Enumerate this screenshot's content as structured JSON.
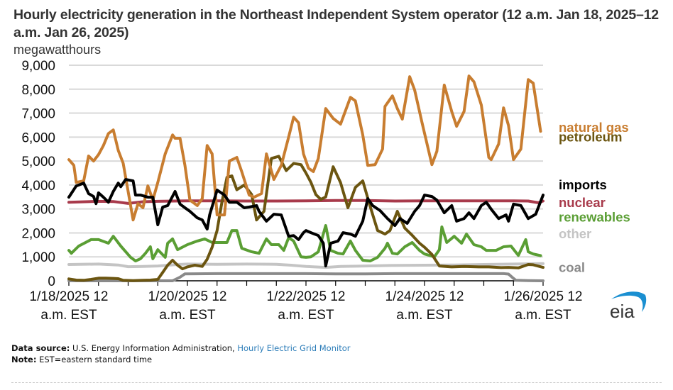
{
  "title": "Hourly electricity generation in the Northeast Independent System operator (12 a.m. Jan 18, 2025–12 a.m. Jan 26, 2025)",
  "footer": {
    "source_label": "Data source:",
    "source_text": "U.S. Energy Information Administration,",
    "source_link": "Hourly Electric Grid Monitor",
    "note_label": "Note:",
    "note_text": "EST=eastern standard time"
  },
  "logo": {
    "text": "eia",
    "name": "eia-logo"
  },
  "chart_data": {
    "type": "line",
    "title": "Hourly electricity generation in the Northeast Independent System operator (12 a.m. Jan 18, 2025–12 a.m. Jan 26, 2025)",
    "ylabel": "megawatthours",
    "xlabel": "",
    "x_unit": "hours since 1/18/2025 12 a.m. EST",
    "xlim": [
      0,
      192
    ],
    "ylim": [
      0,
      9000
    ],
    "yticks": [
      0,
      1000,
      2000,
      3000,
      4000,
      5000,
      6000,
      7000,
      8000,
      9000
    ],
    "ytick_labels": [
      "0",
      "1,000",
      "2,000",
      "3,000",
      "4,000",
      "5,000",
      "6,000",
      "7,000",
      "8,000",
      "9,000"
    ],
    "xticks_minor_hours": [
      0,
      12,
      24,
      36,
      48,
      60,
      72,
      84,
      96,
      108,
      120,
      132,
      144,
      156,
      168,
      180,
      192
    ],
    "xtick_labels": [
      {
        "hour": 0,
        "line1": "1/18/2025 12",
        "line2": "a.m. EST"
      },
      {
        "hour": 48,
        "line1": "1/20/2025 12",
        "line2": "a.m. EST"
      },
      {
        "hour": 96,
        "line1": "1/22/2025 12",
        "line2": "a.m. EST"
      },
      {
        "hour": 144,
        "line1": "1/24/2025 12",
        "line2": "a.m. EST"
      },
      {
        "hour": 192,
        "line1": "1/26/2025 12",
        "line2": "a.m. EST"
      }
    ],
    "grid": true,
    "legend_placement": "right, labels beside line ends",
    "series": [
      {
        "name": "natural gas",
        "color": "#c87d30",
        "legend_value_at": 6400,
        "x": [
          0,
          2,
          3,
          6,
          8,
          10,
          12,
          14,
          16,
          18,
          20,
          22,
          24,
          26,
          28,
          30,
          32,
          34,
          36,
          39,
          42,
          43,
          45,
          47,
          49,
          52,
          54,
          56,
          58,
          60,
          63,
          65,
          68,
          70,
          73,
          75,
          78,
          80,
          83,
          86,
          89,
          91,
          93,
          95,
          97,
          99,
          101,
          104,
          107,
          110,
          114,
          116,
          119,
          121,
          124,
          127,
          128,
          131,
          133,
          135,
          138,
          140,
          143,
          147,
          149,
          152,
          155,
          157,
          160,
          162,
          164,
          167,
          170,
          171,
          174,
          176,
          178,
          180,
          183,
          186,
          188,
          191
        ],
        "y": [
          5060,
          4820,
          4110,
          4170,
          5210,
          5000,
          5270,
          5650,
          6150,
          6300,
          5440,
          4910,
          3730,
          2540,
          3220,
          3050,
          3960,
          3370,
          4110,
          5300,
          6090,
          5950,
          5950,
          4820,
          3370,
          3140,
          3430,
          5650,
          5300,
          2750,
          2750,
          5000,
          5150,
          4560,
          3580,
          3490,
          3640,
          5300,
          4230,
          4820,
          6000,
          6830,
          6600,
          5300,
          4700,
          4560,
          5110,
          7190,
          6780,
          6540,
          7660,
          7510,
          6090,
          4820,
          4850,
          5500,
          7280,
          7720,
          7190,
          6750,
          8520,
          7960,
          6600,
          4850,
          5410,
          8170,
          7070,
          6450,
          7070,
          8550,
          8310,
          7340,
          5150,
          5060,
          5710,
          7220,
          6480,
          5060,
          5500,
          8400,
          8250,
          6240
        ]
      },
      {
        "name": "petroleum",
        "color": "#6b5510",
        "legend_value_at": 6000,
        "x": [
          0,
          3,
          6,
          9,
          12,
          15,
          18,
          20,
          22,
          26,
          30,
          33,
          36,
          38,
          40,
          42,
          44,
          46,
          48,
          51,
          54,
          56,
          58,
          60,
          62,
          64,
          66,
          68,
          71,
          74,
          76,
          79,
          82,
          85,
          88,
          91,
          94,
          96,
          98,
          100,
          102,
          104,
          107,
          110,
          113,
          116,
          119,
          122,
          125,
          128,
          130,
          133,
          136,
          139,
          142,
          144,
          147,
          150,
          155,
          160,
          166,
          170,
          175,
          178,
          182,
          186,
          188,
          192
        ],
        "y": [
          80,
          30,
          20,
          60,
          110,
          110,
          100,
          90,
          20,
          10,
          20,
          30,
          60,
          350,
          650,
          860,
          650,
          500,
          580,
          650,
          600,
          900,
          1400,
          2100,
          3300,
          4320,
          4380,
          3800,
          4000,
          3600,
          2540,
          2900,
          5110,
          5200,
          4600,
          4900,
          4850,
          4500,
          4110,
          3600,
          3400,
          3500,
          4760,
          4100,
          3050,
          3900,
          4170,
          3100,
          2100,
          1950,
          2100,
          2900,
          2200,
          1900,
          1570,
          1400,
          1100,
          620,
          580,
          600,
          580,
          580,
          550,
          560,
          540,
          680,
          670,
          560
        ]
      },
      {
        "name": "imports",
        "color": "#000000",
        "legend_value_at": 4000,
        "x": [
          0,
          3,
          6,
          8,
          10,
          11,
          12,
          14,
          16,
          18,
          20,
          21,
          23,
          26,
          27,
          29,
          32,
          34,
          36,
          38,
          40,
          43,
          45,
          47,
          49,
          52,
          54,
          56,
          57,
          60,
          63,
          65,
          68,
          71,
          73,
          76,
          77,
          80,
          83,
          86,
          89,
          91,
          93,
          95,
          96,
          98,
          101,
          103,
          104,
          106,
          109,
          111,
          114,
          116,
          119,
          121,
          123,
          126,
          129,
          132,
          134,
          137,
          140,
          142,
          144,
          147,
          149,
          152,
          155,
          157,
          160,
          162,
          164,
          167,
          169,
          171,
          174,
          177,
          178,
          180,
          183,
          186,
          189,
          192
        ],
        "y": [
          3490,
          3960,
          4080,
          3640,
          3520,
          3220,
          3670,
          3490,
          3280,
          3730,
          4080,
          3930,
          4230,
          4170,
          3580,
          3580,
          3490,
          3490,
          2340,
          3080,
          3140,
          3730,
          3200,
          3050,
          2900,
          2630,
          2540,
          2160,
          2750,
          3790,
          3580,
          3280,
          3280,
          3050,
          3080,
          3140,
          2900,
          2490,
          2780,
          2750,
          1860,
          1890,
          1720,
          2010,
          2100,
          2010,
          1890,
          1570,
          620,
          1570,
          1660,
          2010,
          1950,
          1860,
          2490,
          3430,
          3140,
          2930,
          2600,
          2310,
          2600,
          2400,
          2900,
          3140,
          3580,
          3520,
          3370,
          2840,
          3140,
          2490,
          2600,
          2840,
          2600,
          3140,
          3280,
          2990,
          2600,
          2750,
          2490,
          3200,
          3140,
          2600,
          2780,
          3580
        ]
      },
      {
        "name": "nuclear",
        "color": "#a83a4b",
        "legend_value_at": 3250,
        "x": [
          0,
          12,
          18,
          24,
          30,
          36,
          48,
          60,
          72,
          84,
          96,
          108,
          120,
          132,
          144,
          156,
          168,
          180,
          186,
          190,
          192
        ],
        "y": [
          3280,
          3320,
          3310,
          3230,
          3300,
          3320,
          3340,
          3340,
          3330,
          3330,
          3340,
          3350,
          3350,
          3330,
          3340,
          3340,
          3340,
          3340,
          3330,
          3260,
          3330
        ]
      },
      {
        "name": "renewables",
        "color": "#5a9e34",
        "legend_value_at": 2650,
        "x": [
          0,
          1,
          4,
          9,
          12,
          16,
          18,
          21,
          25,
          27,
          29,
          31,
          33,
          34,
          36,
          39,
          40,
          42,
          44,
          48,
          52,
          55,
          58,
          61,
          64,
          66,
          68,
          70,
          74,
          77,
          80,
          82,
          85,
          87,
          89,
          91,
          94,
          96,
          98,
          101,
          104,
          106,
          109,
          111,
          114,
          116,
          119,
          122,
          125,
          128,
          129,
          131,
          133,
          136,
          139,
          142,
          144,
          148,
          150,
          151,
          153,
          156,
          159,
          161,
          164,
          167,
          169,
          173,
          176,
          179,
          182,
          185,
          186,
          188,
          191
        ],
        "y": [
          1270,
          1150,
          1450,
          1720,
          1720,
          1570,
          1860,
          1450,
          980,
          830,
          920,
          1150,
          1420,
          920,
          1300,
          980,
          1570,
          1750,
          1300,
          1510,
          1660,
          1750,
          1600,
          1600,
          1600,
          2100,
          2100,
          1360,
          1210,
          1150,
          1750,
          1510,
          1510,
          1270,
          1800,
          1660,
          1000,
          980,
          1000,
          1210,
          2310,
          1270,
          1150,
          1120,
          1660,
          1270,
          860,
          830,
          980,
          1360,
          1570,
          1150,
          1120,
          1420,
          1600,
          1270,
          1120,
          1000,
          1300,
          2250,
          1600,
          1860,
          1570,
          1950,
          1510,
          1420,
          1270,
          1270,
          1420,
          1450,
          1060,
          1720,
          1210,
          1120,
          1050
        ]
      },
      {
        "name": "other",
        "color": "#c4c4c4",
        "legend_value_at": 1950,
        "x": [
          0,
          12,
          20,
          24,
          30,
          36,
          44,
          48,
          60,
          72,
          84,
          90,
          96,
          104,
          110,
          120,
          130,
          144,
          156,
          168,
          180,
          192
        ],
        "y": [
          680,
          700,
          660,
          590,
          600,
          620,
          680,
          700,
          690,
          700,
          690,
          650,
          600,
          560,
          600,
          620,
          640,
          650,
          660,
          680,
          700,
          720
        ]
      },
      {
        "name": "coal",
        "color": "#8a8a8a",
        "legend_value_at": 550,
        "x": [
          0,
          12,
          24,
          36,
          42,
          45,
          47,
          60,
          72,
          84,
          96,
          108,
          120,
          132,
          144,
          156,
          168,
          176,
          178,
          180,
          181,
          186,
          192
        ],
        "y": [
          0,
          0,
          0,
          0,
          0,
          150,
          290,
          300,
          300,
          300,
          300,
          290,
          290,
          300,
          300,
          300,
          300,
          300,
          280,
          100,
          20,
          10,
          0
        ]
      }
    ]
  }
}
